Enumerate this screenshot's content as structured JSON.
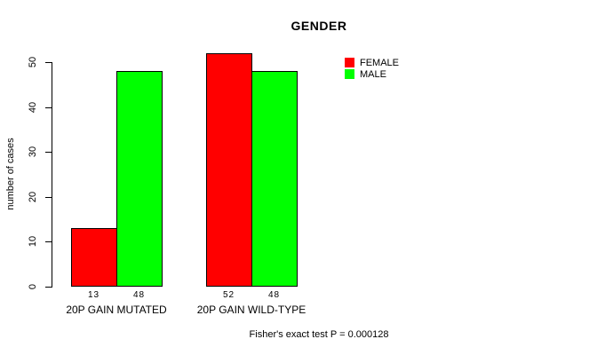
{
  "chart_data": {
    "type": "bar",
    "title": "GENDER",
    "xlabel": "",
    "ylabel": "number of cases",
    "categories": [
      "20P GAIN MUTATED",
      "20P GAIN WILD-TYPE"
    ],
    "series": [
      {
        "name": "FEMALE",
        "color": "#FF0000",
        "values": [
          13,
          52
        ]
      },
      {
        "name": "MALE",
        "color": "#00FF00",
        "values": [
          48,
          48
        ]
      }
    ],
    "yticks": [
      0,
      10,
      20,
      30,
      40,
      50
    ],
    "ylim": [
      0,
      52
    ],
    "grid": false,
    "legend_position": "top-right",
    "bar_value_labels": [
      13,
      48,
      52,
      48
    ],
    "annotation": "Fisher's exact test P = 0.000128"
  }
}
